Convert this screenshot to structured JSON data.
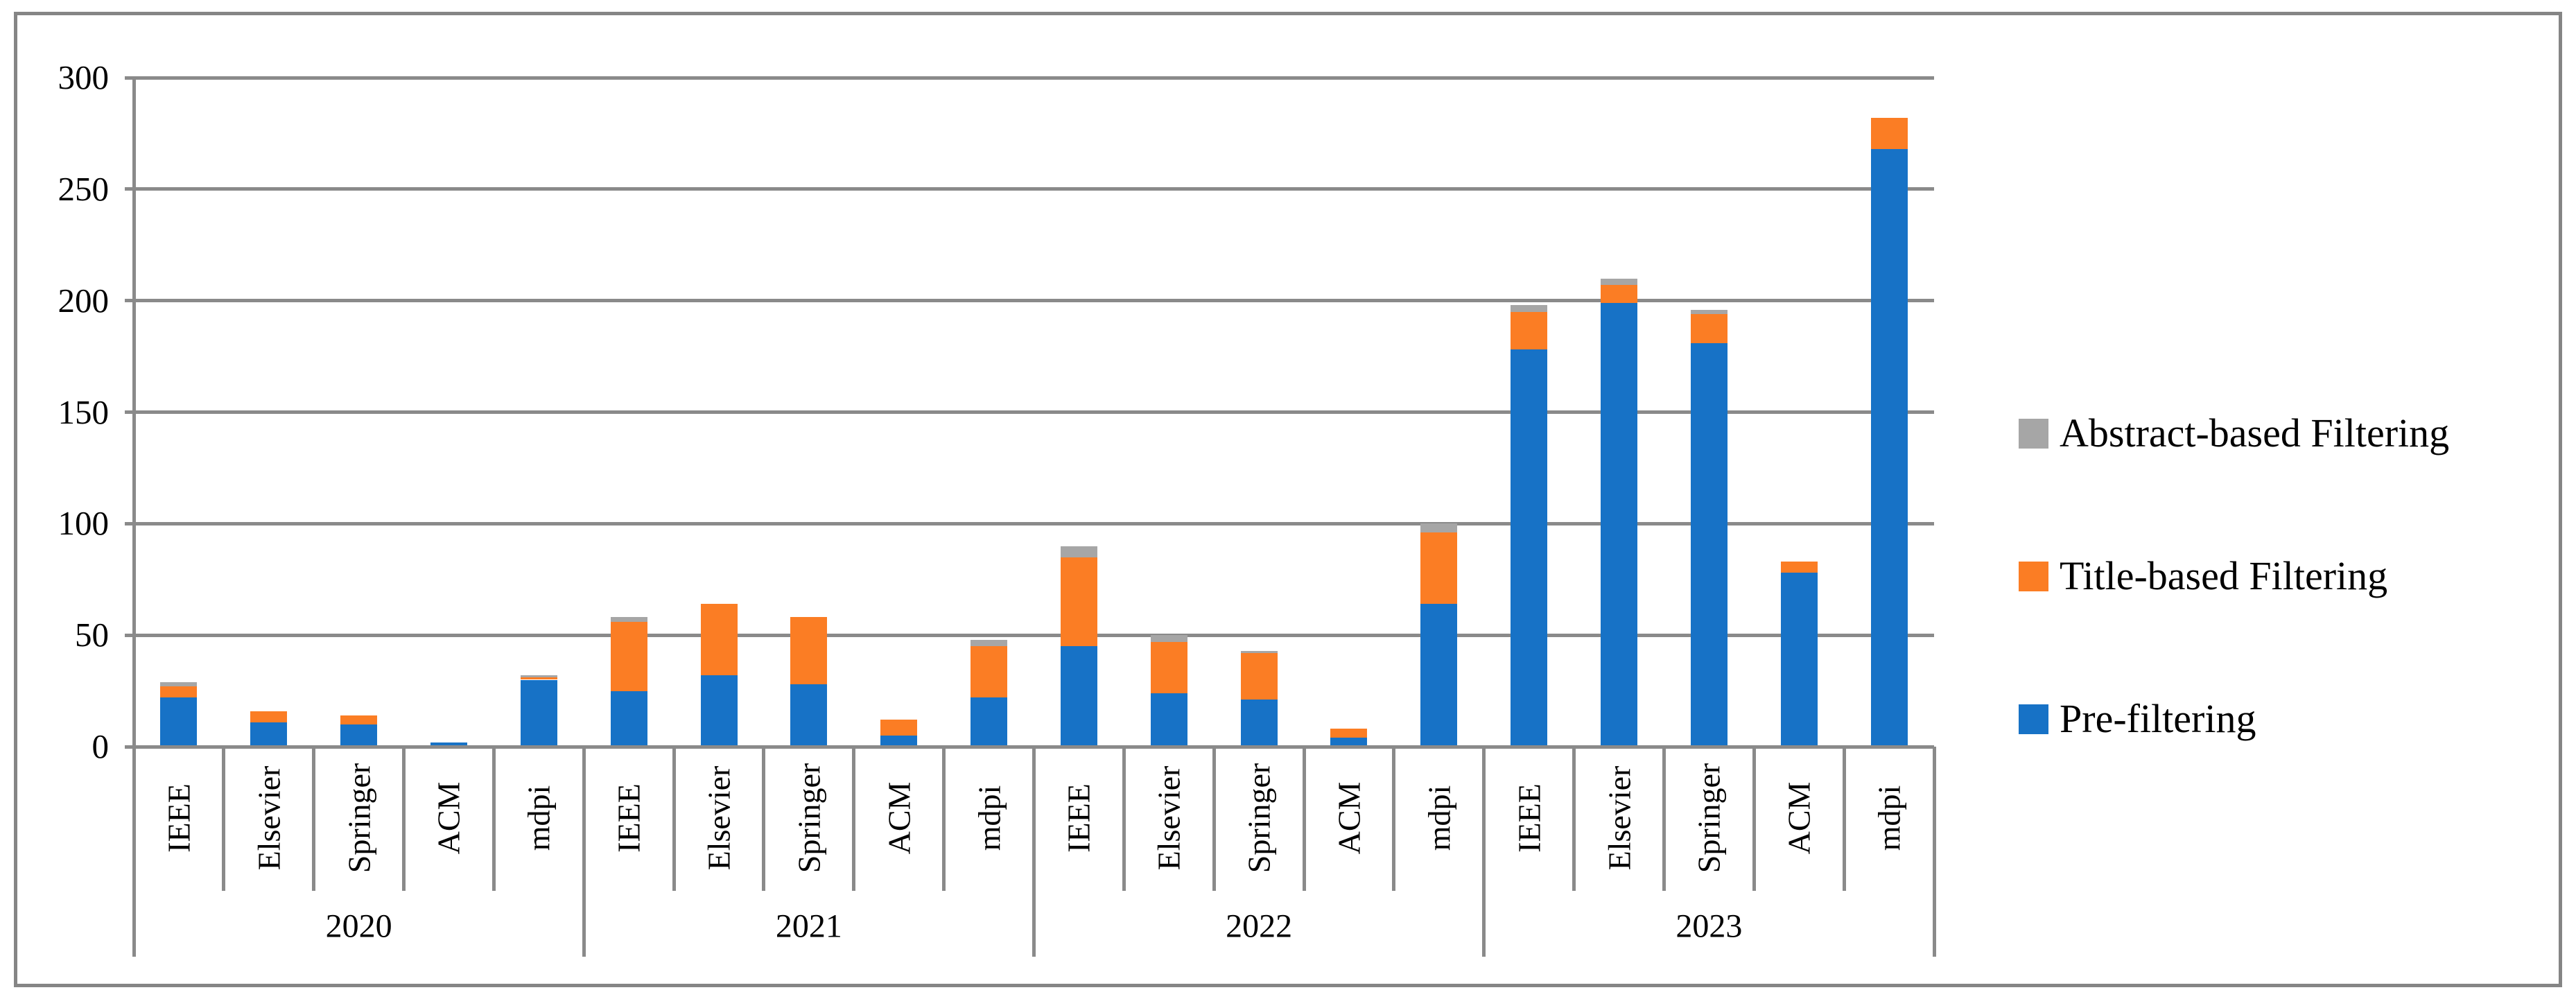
{
  "figure": {
    "background": "#FFFFFF",
    "border_color": "#858585"
  },
  "y_axis": {
    "min": 0,
    "max": 300,
    "step": 50,
    "tick_labels": [
      "0",
      "50",
      "100",
      "150",
      "200",
      "250",
      "300"
    ]
  },
  "x_axis": {
    "group_labels": [
      "2020",
      "2021",
      "2022",
      "2023"
    ],
    "category_labels": [
      "IEEE",
      "Elsevier",
      "Springer",
      "ACM",
      "mdpi"
    ]
  },
  "legend": {
    "position": "right",
    "items": [
      {
        "label": "Abstract-based Filtering",
        "color": "#A6A6A6",
        "swatch": "gray-square-icon"
      },
      {
        "label": "Title-based Filtering",
        "color": "#FB7D24",
        "swatch": "orange-square-icon"
      },
      {
        "label": "Pre-filtering",
        "color": "#1772C6",
        "swatch": "blue-square-icon"
      }
    ]
  },
  "chart_data": {
    "type": "bar",
    "stacked": true,
    "orientation": "vertical",
    "title": "",
    "xlabel": "",
    "ylabel": "",
    "ylim": [
      0,
      300
    ],
    "grid": true,
    "gridline_color": "#8A8A8A",
    "legend_position": "right",
    "groups": [
      "2020",
      "2021",
      "2022",
      "2023"
    ],
    "categories_per_group": [
      "IEEE",
      "Elsevier",
      "Springer",
      "ACM",
      "mdpi"
    ],
    "categories": [
      "2020 IEEE",
      "2020 Elsevier",
      "2020 Springer",
      "2020 ACM",
      "2020 mdpi",
      "2021 IEEE",
      "2021 Elsevier",
      "2021 Springer",
      "2021 ACM",
      "2021 mdpi",
      "2022 IEEE",
      "2022 Elsevier",
      "2022 Springer",
      "2022 ACM",
      "2022 mdpi",
      "2023 IEEE",
      "2023 Elsevier",
      "2023 Springer",
      "2023 ACM",
      "2023 mdpi"
    ],
    "series": [
      {
        "name": "Pre-filtering",
        "color": "#1772C6",
        "values": [
          22,
          11,
          10,
          2,
          30,
          25,
          32,
          28,
          5,
          22,
          45,
          24,
          21,
          4,
          64,
          178,
          199,
          181,
          78,
          268
        ]
      },
      {
        "name": "Title-based Filtering",
        "color": "#FB7D24",
        "values": [
          5,
          5,
          4,
          0,
          1,
          31,
          32,
          30,
          7,
          23,
          40,
          23,
          21,
          4,
          32,
          17,
          8,
          13,
          5,
          14
        ]
      },
      {
        "name": "Abstract-based Filtering",
        "color": "#A6A6A6",
        "values": [
          2,
          0,
          0,
          0,
          1,
          2,
          0,
          0,
          0,
          3,
          5,
          3,
          1,
          0,
          4,
          3,
          3,
          2,
          0,
          0
        ]
      }
    ],
    "totals": [
      29,
      16,
      14,
      2,
      32,
      58,
      64,
      58,
      12,
      48,
      90,
      50,
      43,
      8,
      100,
      198,
      210,
      196,
      83,
      282
    ]
  }
}
